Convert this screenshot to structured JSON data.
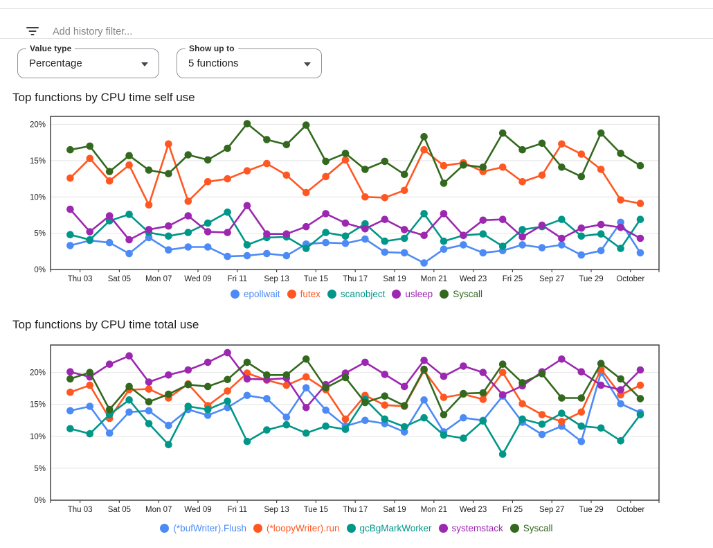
{
  "filter_bar": {
    "icon": "filter-list-icon",
    "placeholder": "Add history filter..."
  },
  "controls": {
    "value_type": {
      "label": "Value type",
      "value": "Percentage"
    },
    "show_up_to": {
      "label": "Show up to",
      "value": "5 functions"
    }
  },
  "chart_data": [
    {
      "type": "line",
      "title": "Top functions by CPU time self use",
      "x_tick_labels": [
        "Thu 03",
        "Sat 05",
        "Mon 07",
        "Wed 09",
        "Fri 11",
        "Sep 13",
        "Tue 15",
        "Thu 17",
        "Sat 19",
        "Mon 21",
        "Wed 23",
        "Fri 25",
        "Sep 27",
        "Tue 29",
        "October"
      ],
      "y_tick_labels": [
        "0%",
        "5%",
        "10%",
        "15%",
        "20%"
      ],
      "y_ticks": [
        0,
        5,
        10,
        15,
        20
      ],
      "ylim": [
        0,
        21.1
      ],
      "grid": true,
      "legend_position": "bottom",
      "series": [
        {
          "name": "epollwait",
          "color": "#4c8bf5",
          "values": [
            3.3,
            4.0,
            3.7,
            2.2,
            4.4,
            2.7,
            3.1,
            3.1,
            1.8,
            1.9,
            2.2,
            1.9,
            3.5,
            3.7,
            3.6,
            4.2,
            2.4,
            2.3,
            0.9,
            2.8,
            3.4,
            2.3,
            2.6,
            3.4,
            3.0,
            3.4,
            2.0,
            2.6,
            6.5,
            2.3
          ]
        },
        {
          "name": "futex",
          "color": "#ff5722",
          "values": [
            12.6,
            15.3,
            12.2,
            14.4,
            8.9,
            17.3,
            9.4,
            12.1,
            12.5,
            13.6,
            14.6,
            13.0,
            10.6,
            12.8,
            15.1,
            10.0,
            9.9,
            10.9,
            16.5,
            14.3,
            14.7,
            13.5,
            14.1,
            12.1,
            13.0,
            17.3,
            15.9,
            13.8,
            9.6,
            9.1
          ]
        },
        {
          "name": "scanobject",
          "color": "#009688",
          "values": [
            4.8,
            4.1,
            6.7,
            7.6,
            5.1,
            4.6,
            5.1,
            6.4,
            7.9,
            3.4,
            4.4,
            4.5,
            2.9,
            5.1,
            4.6,
            6.3,
            3.9,
            4.3,
            7.7,
            3.9,
            4.7,
            4.9,
            3.2,
            5.5,
            5.9,
            6.9,
            4.6,
            4.9,
            2.9,
            6.9
          ]
        },
        {
          "name": "usleep",
          "color": "#9c27b0",
          "values": [
            8.3,
            5.2,
            7.4,
            4.1,
            5.5,
            6.0,
            7.4,
            5.2,
            5.1,
            8.8,
            4.9,
            4.9,
            5.9,
            7.7,
            6.4,
            5.6,
            6.9,
            5.5,
            4.7,
            7.7,
            4.7,
            6.8,
            6.9,
            4.5,
            6.1,
            4.3,
            5.7,
            6.2,
            5.8,
            4.3
          ]
        },
        {
          "name": "Syscall",
          "color": "#33691e",
          "values": [
            16.5,
            17.0,
            13.5,
            15.7,
            13.7,
            13.2,
            15.8,
            15.1,
            16.7,
            20.1,
            17.9,
            17.2,
            19.9,
            14.9,
            16.0,
            13.8,
            14.9,
            13.1,
            18.3,
            11.9,
            14.4,
            14.1,
            18.8,
            16.5,
            17.4,
            14.1,
            12.8,
            18.8,
            16.0,
            14.3
          ]
        }
      ]
    },
    {
      "type": "line",
      "title": "Top functions by CPU time total use",
      "x_tick_labels": [
        "Thu 03",
        "Sat 05",
        "Mon 07",
        "Wed 09",
        "Fri 11",
        "Sep 13",
        "Tue 15",
        "Thu 17",
        "Sat 19",
        "Mon 21",
        "Wed 23",
        "Fri 25",
        "Sep 27",
        "Tue 29",
        "October"
      ],
      "y_tick_labels": [
        "0%",
        "5%",
        "10%",
        "15%",
        "20%"
      ],
      "y_ticks": [
        0,
        5,
        10,
        15,
        20
      ],
      "ylim": [
        0,
        24.3
      ],
      "grid": true,
      "legend_position": "bottom",
      "series": [
        {
          "name": "(*bufWriter).Flush",
          "color": "#4c8bf5",
          "values": [
            14.0,
            14.7,
            10.5,
            13.8,
            14.0,
            11.7,
            14.2,
            13.3,
            14.5,
            16.4,
            15.9,
            13.0,
            17.6,
            14.1,
            11.6,
            12.5,
            12.0,
            10.7,
            15.7,
            10.7,
            12.9,
            12.5,
            16.3,
            12.2,
            10.3,
            11.6,
            9.2,
            20.0,
            15.1,
            13.7
          ]
        },
        {
          "name": "(*loopyWriter).run",
          "color": "#ff5722",
          "values": [
            16.9,
            18.0,
            12.8,
            17.3,
            17.4,
            16.0,
            18.2,
            14.8,
            17.1,
            19.9,
            18.8,
            18.0,
            19.3,
            17.3,
            12.7,
            16.4,
            14.9,
            14.7,
            20.3,
            16.1,
            16.6,
            15.8,
            20.0,
            15.1,
            13.4,
            12.3,
            13.8,
            20.5,
            16.5,
            18.0
          ]
        },
        {
          "name": "gcBgMarkWorker",
          "color": "#009688",
          "values": [
            11.2,
            10.4,
            13.4,
            15.7,
            12.0,
            8.7,
            14.7,
            14.2,
            15.5,
            9.2,
            11.0,
            11.8,
            10.5,
            11.6,
            11.1,
            15.8,
            12.7,
            11.5,
            12.9,
            10.2,
            9.7,
            12.4,
            7.2,
            12.7,
            11.9,
            13.6,
            11.6,
            11.3,
            9.3,
            13.4
          ]
        },
        {
          "name": "systemstack",
          "color": "#9c27b0",
          "values": [
            20.1,
            19.3,
            21.3,
            22.6,
            18.5,
            19.6,
            20.4,
            21.6,
            23.1,
            19.0,
            18.9,
            19.1,
            14.5,
            18.1,
            19.9,
            21.6,
            19.7,
            17.8,
            21.9,
            19.4,
            21.0,
            20.0,
            16.5,
            17.9,
            20.1,
            22.1,
            20.1,
            18.0,
            17.3,
            20.4
          ]
        },
        {
          "name": "Syscall",
          "color": "#33691e",
          "values": [
            19.0,
            20.0,
            14.2,
            17.8,
            15.4,
            16.6,
            18.1,
            17.8,
            18.9,
            21.6,
            19.6,
            19.6,
            22.1,
            17.6,
            19.2,
            15.3,
            16.3,
            14.8,
            20.5,
            13.4,
            16.7,
            16.8,
            21.3,
            18.4,
            19.8,
            16.0,
            16.0,
            21.4,
            19.0,
            15.9
          ]
        }
      ]
    }
  ]
}
